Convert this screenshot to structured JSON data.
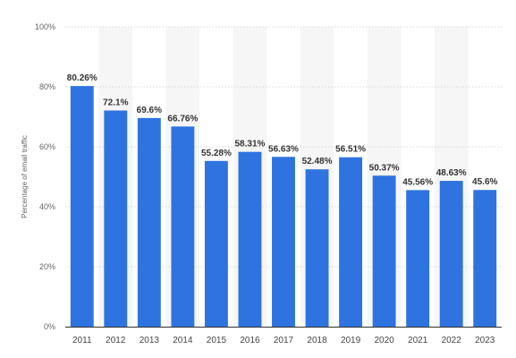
{
  "chart_data": {
    "type": "bar",
    "title": "",
    "xlabel": "",
    "ylabel": "Percentage of email traffic",
    "categories": [
      "2011",
      "2012",
      "2013",
      "2014",
      "2015",
      "2016",
      "2017",
      "2018",
      "2019",
      "2020",
      "2021",
      "2022",
      "2023"
    ],
    "values": [
      80.26,
      72.1,
      69.6,
      66.76,
      55.28,
      58.31,
      56.63,
      52.48,
      56.51,
      50.37,
      45.56,
      48.63,
      45.6
    ],
    "value_labels": [
      "80.26%",
      "72.1%",
      "69.6%",
      "66.76%",
      "55.28%",
      "58.31%",
      "56.63%",
      "52.48%",
      "56.51%",
      "50.37%",
      "45.56%",
      "48.63%",
      "45.6%"
    ],
    "ylim": [
      0,
      100
    ],
    "yticks": [
      0,
      20,
      40,
      60,
      80,
      100
    ],
    "ytick_labels": [
      "0%",
      "20%",
      "40%",
      "60%",
      "80%",
      "100%"
    ],
    "grid": true,
    "legend": "none",
    "colors": {
      "bar": "#2f73e0",
      "band": "#f6f6f6",
      "grid": "#d8d8d8",
      "axis": "#333333"
    }
  }
}
